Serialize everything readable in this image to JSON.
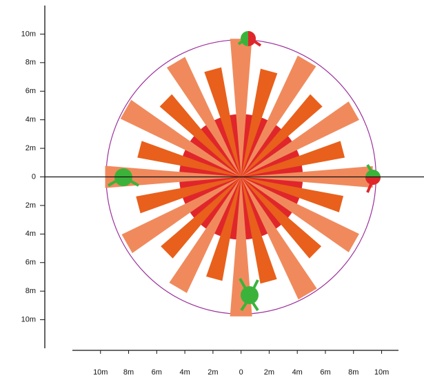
{
  "chart_data": {
    "type": "polar-bar",
    "xlim": [
      -12,
      11.2
    ],
    "ylim": [
      -12,
      12
    ],
    "xticks": [
      {
        "value": -10,
        "label": "10m"
      },
      {
        "value": -8,
        "label": "8m"
      },
      {
        "value": -6,
        "label": "6m"
      },
      {
        "value": -4,
        "label": "4m"
      },
      {
        "value": -2,
        "label": "2m"
      },
      0,
      {
        "value": 2,
        "label": "2m"
      },
      {
        "value": 4,
        "label": "4m"
      },
      {
        "value": 6,
        "label": "6m"
      },
      {
        "value": 8,
        "label": "8m"
      },
      {
        "value": 10,
        "label": "10m"
      }
    ],
    "yticks": [
      {
        "value": 10,
        "label": "10m"
      },
      {
        "value": 8,
        "label": "8m"
      },
      {
        "value": 6,
        "label": "6m"
      },
      {
        "value": 4,
        "label": "4m"
      },
      {
        "value": 2,
        "label": "2m"
      },
      0,
      {
        "value": -2,
        "label": "2m"
      },
      {
        "value": -4,
        "label": "4m"
      },
      {
        "value": -6,
        "label": "6m"
      },
      {
        "value": -8,
        "label": "8m"
      },
      {
        "value": -10,
        "label": "10m"
      }
    ],
    "core_radius": 4.4,
    "core_color": "#e0262a",
    "coverage_radius": 9.6,
    "coverage_color": "#9b2f9b",
    "series": [
      {
        "color": "#f08a5d",
        "x": [
          90,
          120,
          150,
          180,
          210,
          240,
          270,
          300,
          330,
          0,
          30,
          60
        ],
        "values": [
          9.7,
          9.3,
          9.5,
          9.7,
          9.4,
          9.0,
          9.8,
          9.5,
          9.3,
          9.4,
          9.3,
          9.4
        ]
      },
      {
        "color": "#e8601c",
        "x": [
          105,
          135,
          165,
          195,
          225,
          255,
          285,
          315,
          345,
          15,
          45,
          75
        ],
        "values": [
          7.8,
          7.6,
          7.5,
          7.6,
          7.5,
          7.4,
          7.6,
          7.5,
          7.4,
          7.5,
          7.6,
          7.7
        ]
      }
    ]
  }
}
